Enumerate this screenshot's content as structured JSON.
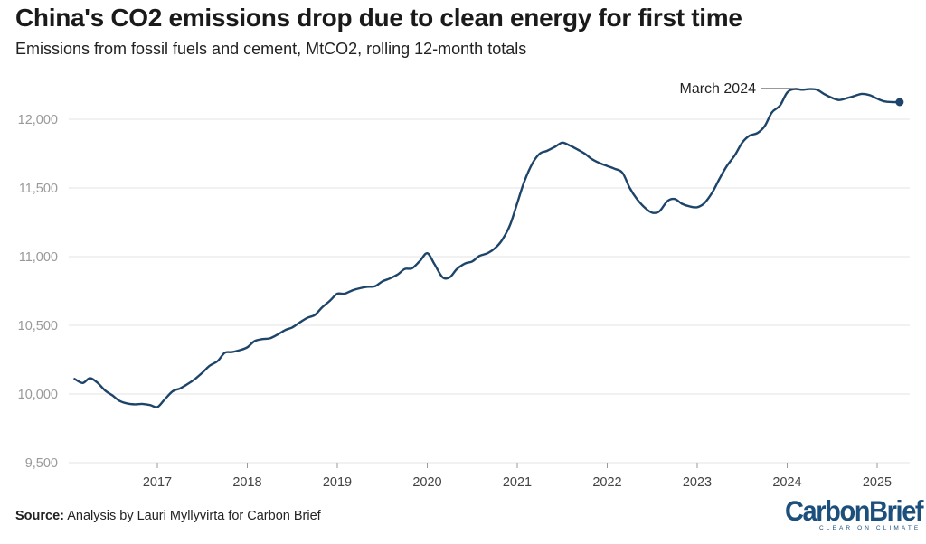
{
  "header": {
    "title": "China's CO2 emissions drop due to clean energy for first time",
    "subtitle": "Emissions from fossil fuels and cement, MtCO2, rolling 12-month totals"
  },
  "footer": {
    "source_label": "Source:",
    "source_text": "Analysis by Lauri Myllyvirta for Carbon Brief"
  },
  "logo": {
    "text_part1": "Carbon",
    "text_part2": "Brief",
    "tagline": "CLEAR ON CLIMATE"
  },
  "colors": {
    "line": "#1d4469",
    "grid": "#e3e3e3",
    "axis_text": "#999999",
    "logo": "#1d4f7c"
  },
  "chart_data": {
    "type": "line",
    "title": "China's CO2 emissions drop due to clean energy for first time",
    "subtitle": "Emissions from fossil fuels and cement, MtCO2, rolling 12-month totals",
    "xlabel": "",
    "ylabel": "",
    "ylim": [
      9500,
      12500
    ],
    "yticks": [
      9500,
      10000,
      10500,
      11000,
      11500,
      12000
    ],
    "ytick_labels": [
      "9,500",
      "10,000",
      "10,500",
      "11,000",
      "11,500",
      "12,000"
    ],
    "xticks": [
      2017,
      2018,
      2019,
      2020,
      2021,
      2022,
      2023,
      2024,
      2025
    ],
    "xtick_labels": [
      "2017",
      "2018",
      "2019",
      "2020",
      "2021",
      "2022",
      "2023",
      "2024",
      "2025"
    ],
    "grid": "horizontal",
    "annotation": {
      "label": "March 2024",
      "x": 2025.25,
      "y": 12125
    },
    "series": [
      {
        "x": [
          2016.08,
          2016.17,
          2016.25,
          2016.33,
          2016.42,
          2016.5,
          2016.58,
          2016.67,
          2016.75,
          2016.83,
          2016.92,
          2017.0,
          2017.08,
          2017.17,
          2017.25,
          2017.33,
          2017.42,
          2017.5,
          2017.58,
          2017.67,
          2017.75,
          2017.83,
          2017.92,
          2018.0,
          2018.08,
          2018.17,
          2018.25,
          2018.33,
          2018.42,
          2018.5,
          2018.58,
          2018.67,
          2018.75,
          2018.83,
          2018.92,
          2019.0,
          2019.08,
          2019.17,
          2019.25,
          2019.33,
          2019.42,
          2019.5,
          2019.58,
          2019.67,
          2019.75,
          2019.83,
          2019.92,
          2020.0,
          2020.08,
          2020.17,
          2020.25,
          2020.33,
          2020.42,
          2020.5,
          2020.58,
          2020.67,
          2020.75,
          2020.83,
          2020.92,
          2021.0,
          2021.08,
          2021.17,
          2021.25,
          2021.33,
          2021.42,
          2021.5,
          2021.58,
          2021.67,
          2021.75,
          2021.83,
          2021.92,
          2022.0,
          2022.08,
          2022.17,
          2022.25,
          2022.33,
          2022.42,
          2022.5,
          2022.58,
          2022.67,
          2022.75,
          2022.83,
          2022.92,
          2023.0,
          2023.08,
          2023.17,
          2023.25,
          2023.33,
          2023.42,
          2023.5,
          2023.58,
          2023.67,
          2023.75,
          2023.83,
          2023.92,
          2024.0,
          2024.08,
          2024.17,
          2024.25,
          2024.33,
          2024.42,
          2024.5,
          2024.58,
          2024.67,
          2024.75,
          2024.83,
          2024.92,
          2025.0,
          2025.08,
          2025.17,
          2025.25
        ],
        "y": [
          10110,
          10080,
          10115,
          10085,
          10025,
          9990,
          9950,
          9930,
          9925,
          9928,
          9920,
          9905,
          9960,
          10020,
          10040,
          10070,
          10110,
          10155,
          10205,
          10240,
          10300,
          10305,
          10320,
          10340,
          10385,
          10400,
          10405,
          10430,
          10465,
          10485,
          10520,
          10555,
          10575,
          10630,
          10680,
          10730,
          10730,
          10755,
          10770,
          10780,
          10785,
          10820,
          10840,
          10870,
          10910,
          10915,
          10970,
          11025,
          10945,
          10850,
          10850,
          10910,
          10950,
          10965,
          11005,
          11025,
          11060,
          11120,
          11230,
          11390,
          11550,
          11680,
          11750,
          11770,
          11800,
          11830,
          11810,
          11780,
          11750,
          11710,
          11680,
          11660,
          11640,
          11610,
          11500,
          11420,
          11355,
          11320,
          11330,
          11405,
          11420,
          11385,
          11365,
          11360,
          11390,
          11470,
          11570,
          11660,
          11740,
          11830,
          11880,
          11900,
          11950,
          12050,
          12100,
          12195,
          12220,
          12215,
          12220,
          12215,
          12180,
          12155,
          12140,
          12155,
          12170,
          12185,
          12175,
          12150,
          12130,
          12125,
          12125
        ]
      }
    ]
  }
}
